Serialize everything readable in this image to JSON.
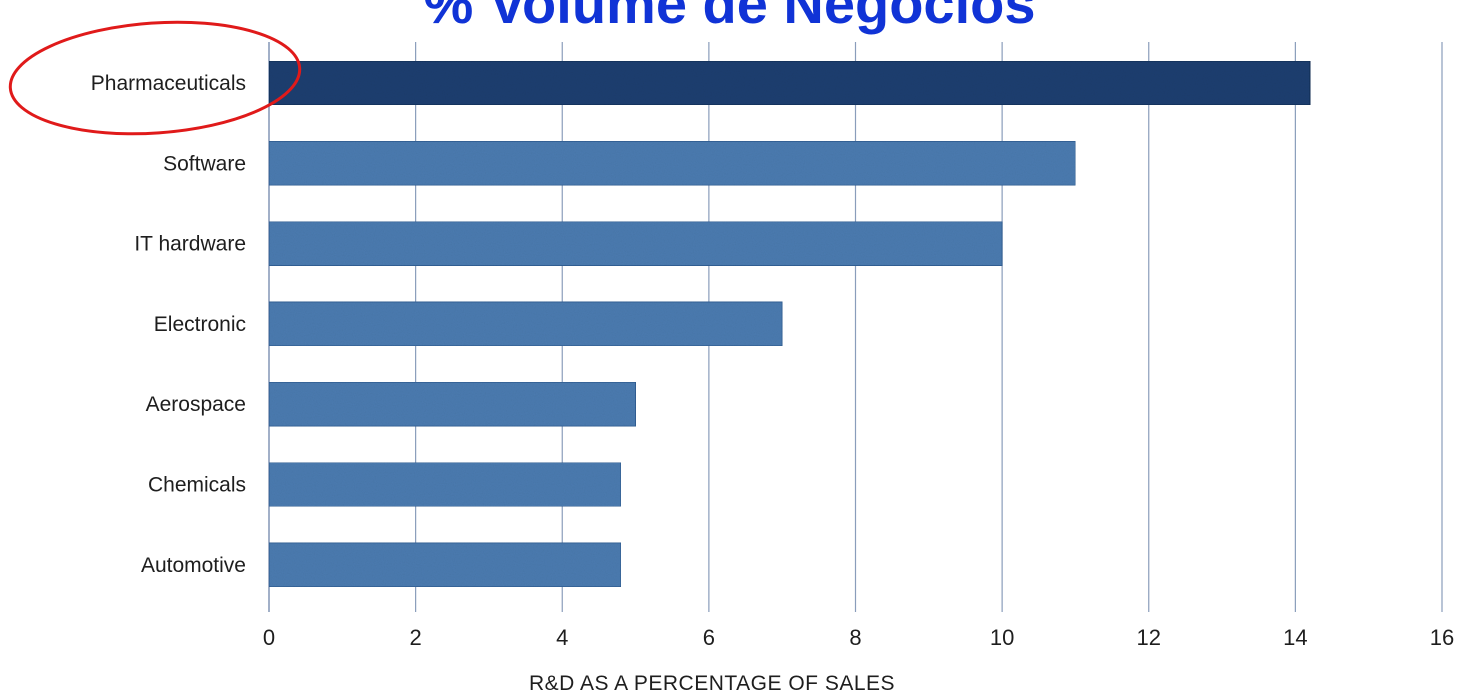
{
  "page": {
    "title": "% Volume de Negócios"
  },
  "chart_data": {
    "type": "bar",
    "orientation": "horizontal",
    "categories": [
      "Pharmaceuticals",
      "Software",
      "IT hardware",
      "Electronic",
      "Aerospace",
      "Chemicals",
      "Automotive"
    ],
    "values": [
      14.2,
      11.0,
      10.0,
      7.0,
      5.0,
      4.8,
      4.8
    ],
    "xlabel": "R&D AS A PERCENTAGE OF SALES",
    "ylabel": "",
    "xlim": [
      0,
      16
    ],
    "xticks": [
      "0",
      "2",
      "4",
      "6",
      "8",
      "10",
      "12",
      "14",
      "16"
    ],
    "grid": "vertical",
    "legend": "none",
    "highlighted_category": "Pharmaceuticals",
    "colors": {
      "bar": "#4b7bb0",
      "bar_highlight": "#1f3f70",
      "grid": "#8a9dbb",
      "highlight_ellipse": "#e01a1a"
    }
  }
}
